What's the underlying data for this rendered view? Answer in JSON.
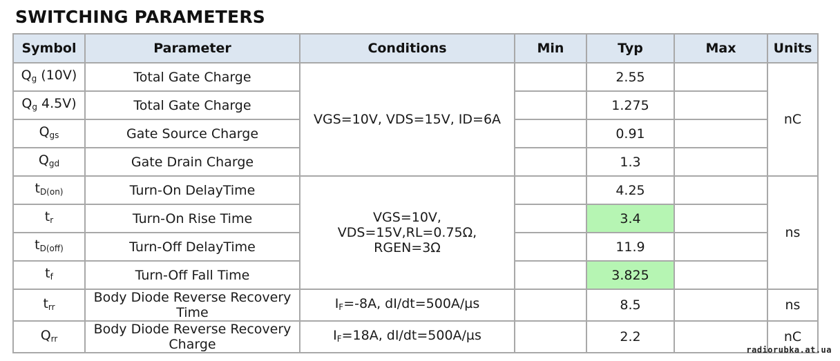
{
  "title": "SWITCHING PARAMETERS",
  "headers": [
    "Symbol",
    "Parameter",
    "Conditions",
    "Min",
    "Typ",
    "Max",
    "Units"
  ],
  "rows": [
    {
      "sym": "Q",
      "sub": "g",
      "suffix": " (10V)",
      "param": "Total Gate Charge",
      "typ": "2.55"
    },
    {
      "sym": "Q",
      "sub": "g",
      "suffix": " 4.5V)",
      "param": "Total Gate Charge",
      "typ": "1.275"
    },
    {
      "sym": "Q",
      "sub": "gs",
      "suffix": "",
      "param": "Gate Source Charge",
      "typ": "0.91"
    },
    {
      "sym": "Q",
      "sub": "gd",
      "suffix": "",
      "param": "Gate Drain Charge",
      "typ": "1.3"
    },
    {
      "sym": "t",
      "sub": "D(on)",
      "suffix": "",
      "param": "Turn-On DelayTime",
      "typ": "4.25"
    },
    {
      "sym": "t",
      "sub": "r",
      "suffix": "",
      "param": "Turn-On Rise Time",
      "typ": "3.4"
    },
    {
      "sym": "t",
      "sub": "D(off)",
      "suffix": "",
      "param": "Turn-Off DelayTime",
      "typ": "11.9"
    },
    {
      "sym": "t",
      "sub": "f",
      "suffix": "",
      "param": "Turn-Off Fall Time",
      "typ": "3.825"
    },
    {
      "sym": "t",
      "sub": "rr",
      "suffix": "",
      "param": "Body Diode Reverse Recovery Time",
      "typ": "8.5",
      "cond_pre": "I",
      "cond_sub": "F",
      "cond_post": "=-8A, dI/dt=500A/µs",
      "units": "ns"
    },
    {
      "sym": "Q",
      "sub": "rr",
      "suffix": "",
      "param": "Body Diode Reverse Recovery Charge",
      "typ": "2.2",
      "cond_pre": "I",
      "cond_sub": "F",
      "cond_post": "=18A, dI/dt=500A/µs",
      "units": "nC"
    }
  ],
  "groups": {
    "gate": {
      "conditions": "VGS=10V, VDS=15V, ID=6A",
      "units": "nC"
    },
    "switch": {
      "conditions": "VGS=10V, VDS=15V,RL=0.75Ω, RGEN=3Ω",
      "units": "ns"
    }
  },
  "highlight_color": "#b6f5b3",
  "watermark": "radiorubka.at.ua"
}
